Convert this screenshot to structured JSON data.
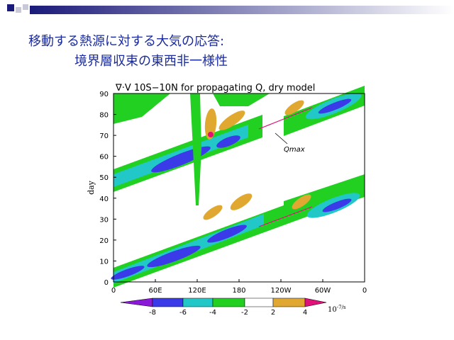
{
  "header": {
    "title_lines": [
      "移動する熱源に対する大気の応答:",
      "境界層収束の東西非一様性"
    ]
  },
  "figure": {
    "title": "∇·V 10S−10N for propagating Q, dry model",
    "y_label": "day",
    "y_ticks": [
      "0",
      "10",
      "20",
      "30",
      "40",
      "50",
      "60",
      "70",
      "80",
      "90"
    ],
    "x_ticks": [
      "0",
      "60E",
      "120E",
      "180",
      "120W",
      "60W",
      "0"
    ],
    "annotation": "Qmax",
    "colorbar": {
      "labels": [
        "-8",
        "-6",
        "-4",
        "-2",
        "2",
        "4"
      ],
      "unit_base": "10",
      "unit_exponent": "-7/s"
    }
  }
}
